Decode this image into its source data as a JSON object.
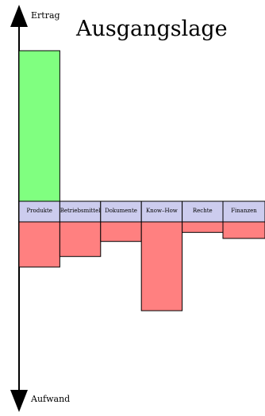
{
  "chart_data": {
    "type": "bar",
    "title": "Ausgangslage",
    "y_axis_top_label": "Ertrag",
    "y_axis_bottom_label": "Aufwand",
    "ertrag": {
      "category": "Produkte",
      "value": 100,
      "color": "#80ff80"
    },
    "categories": [
      "Produkte",
      "Betriebsmittel",
      "Dokumente",
      "Know–How",
      "Rechte",
      "Finanzen"
    ],
    "aufwand_values": [
      30,
      23,
      13,
      59,
      7,
      11
    ],
    "aufwand_color": "#ff8080",
    "category_band_color": "#ccccee",
    "ylim": [
      -125,
      105
    ],
    "grid": false,
    "legend": "none"
  }
}
